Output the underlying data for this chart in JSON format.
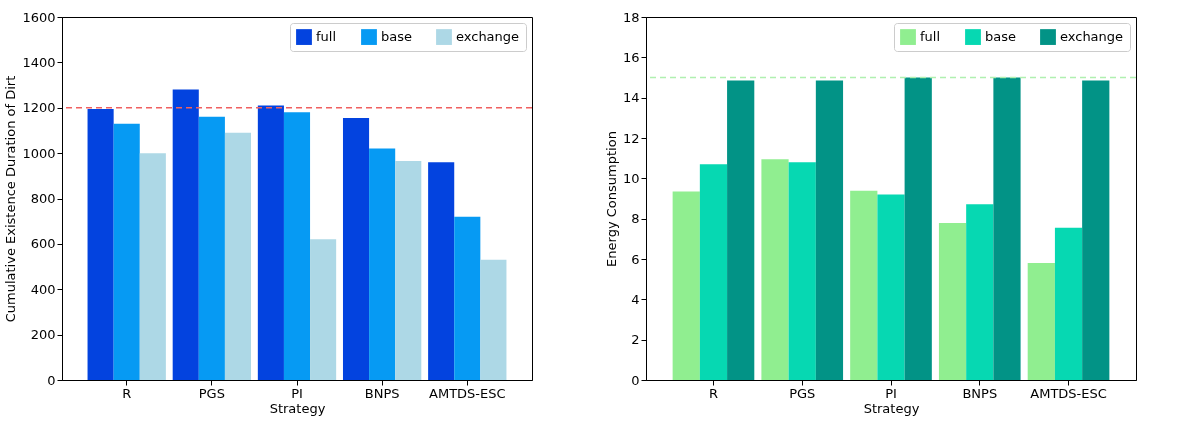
{
  "chart_data": [
    {
      "type": "bar",
      "xlabel": "Strategy",
      "ylabel": "Cumulative Existence Duration of Dirt",
      "categories": [
        "R",
        "PGS",
        "PI",
        "BNPS",
        "AMTDS-ESC"
      ],
      "series": [
        {
          "name": "full",
          "color": "#0343df",
          "values": [
            1195,
            1280,
            1210,
            1155,
            960
          ]
        },
        {
          "name": "base",
          "color": "#069af3",
          "values": [
            1130,
            1160,
            1180,
            1020,
            720
          ]
        },
        {
          "name": "exchange",
          "color": "#add8e6",
          "values": [
            1000,
            1090,
            620,
            965,
            530
          ]
        }
      ],
      "ylim": [
        0,
        1600
      ],
      "yticks": [
        0,
        200,
        400,
        600,
        800,
        1000,
        1200,
        1400,
        1600
      ],
      "ref_lines": [
        {
          "axis": "y",
          "value": 1200,
          "color": "#f06060",
          "line_style": "dashed"
        }
      ],
      "legend": "top right"
    },
    {
      "type": "bar",
      "xlabel": "Strategy",
      "ylabel": "Energy Consumption",
      "categories": [
        "R",
        "PGS",
        "PI",
        "BNPS",
        "AMTDS-ESC"
      ],
      "series": [
        {
          "name": "full",
          "color": "#90ee90",
          "values": [
            9.35,
            10.95,
            9.38,
            7.78,
            5.8
          ]
        },
        {
          "name": "base",
          "color": "#06d8b2",
          "values": [
            10.7,
            10.8,
            9.2,
            8.72,
            7.55
          ]
        },
        {
          "name": "exchange",
          "color": "#029386",
          "values": [
            14.85,
            14.85,
            15.0,
            15.0,
            14.85
          ]
        }
      ],
      "ylim": [
        0,
        18
      ],
      "yticks": [
        0,
        2,
        4,
        6,
        8,
        10,
        12,
        14,
        16,
        18
      ],
      "ref_lines": [
        {
          "axis": "y",
          "value": 15,
          "color": "#b0f0b0",
          "line_style": "dashed"
        }
      ],
      "legend": "top right"
    }
  ]
}
